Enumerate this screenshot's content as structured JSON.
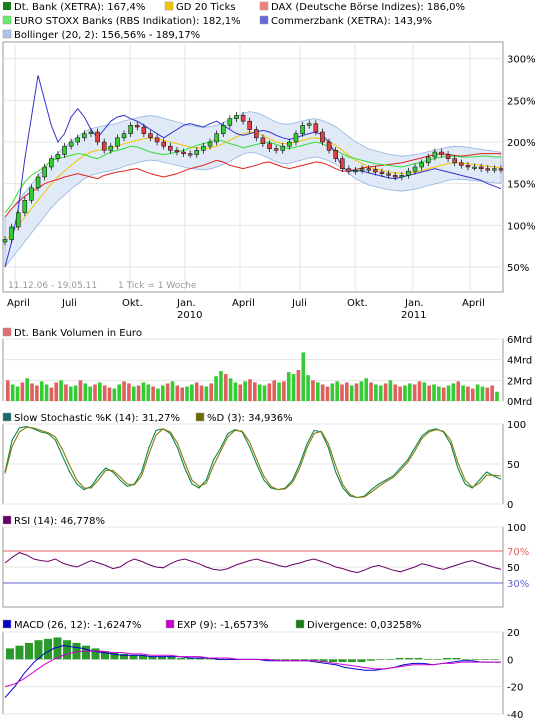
{
  "chart_data": [
    {
      "type": "line",
      "panel": "price",
      "legend": [
        {
          "label": "Dt. Bank (XETRA): 167,4%",
          "color": "#1a7d1a",
          "marker": "candle"
        },
        {
          "label": "GD 20 Ticks",
          "color": "#f5c400"
        },
        {
          "label": "DAX (Deutsche Börse Indizes): 186,0%",
          "color": "#e02020"
        },
        {
          "label": "EURO STOXX Banks (RBS Indikation): 182,1%",
          "color": "#33dd33"
        },
        {
          "label": "Commerzbank (XETRA): 143,9%",
          "color": "#3333cc"
        },
        {
          "label": "Bollinger (20, 2): 156,56% - 189,17%",
          "color": "#8aaee0"
        }
      ],
      "y_ticks": [
        "300%",
        "250%",
        "200%",
        "150%",
        "100%",
        "50%"
      ],
      "y_tick_values": [
        300,
        250,
        200,
        150,
        100,
        50
      ],
      "ylim": [
        20,
        320
      ],
      "date_range_label": "11.12.06 - 19.05.11",
      "tick_label": "1 Tick = 1 Woche",
      "x_month_labels": [
        "April",
        "Juli",
        "Okt.",
        "Jan.",
        "April",
        "Juli",
        "Okt.",
        "Jan.",
        "April"
      ],
      "x_year_labels": [
        "2010",
        "2011"
      ],
      "series": [
        {
          "name": "Dt. Bank (XETRA)",
          "values": [
            83,
            98,
            115,
            130,
            145,
            158,
            170,
            180,
            185,
            195,
            200,
            205,
            210,
            212,
            200,
            190,
            195,
            205,
            210,
            220,
            218,
            210,
            205,
            200,
            195,
            190,
            188,
            186,
            185,
            190,
            195,
            200,
            210,
            220,
            228,
            232,
            225,
            215,
            205,
            198,
            192,
            190,
            195,
            200,
            210,
            220,
            222,
            212,
            200,
            190,
            180,
            168,
            165,
            166,
            168,
            167,
            164,
            162,
            160,
            158,
            160,
            165,
            170,
            175,
            182,
            188,
            185,
            180,
            175,
            172,
            170,
            170,
            168,
            167,
            168,
            167
          ]
        },
        {
          "name": "GD 20 Ticks",
          "values": [
            80,
            90,
            100,
            110,
            120,
            130,
            140,
            150,
            158,
            165,
            172,
            178,
            184,
            188,
            190,
            192,
            193,
            195,
            198,
            200,
            202,
            204,
            205,
            204,
            202,
            200,
            198,
            196,
            194,
            193,
            192,
            193,
            195,
            198,
            202,
            206,
            210,
            212,
            211,
            208,
            204,
            200,
            198,
            198,
            200,
            202,
            204,
            205,
            203,
            200,
            196,
            190,
            184,
            178,
            174,
            170,
            168,
            166,
            164,
            163,
            162,
            163,
            164,
            166,
            168,
            170,
            172,
            174,
            175,
            175,
            174,
            173,
            172,
            171,
            170,
            169
          ]
        },
        {
          "name": "DAX (Deutsche Börse Indizes)",
          "values": [
            110,
            120,
            128,
            135,
            140,
            145,
            150,
            153,
            155,
            158,
            160,
            162,
            160,
            158,
            156,
            160,
            162,
            164,
            165,
            167,
            168,
            165,
            162,
            160,
            158,
            160,
            162,
            165,
            168,
            170,
            172,
            175,
            178,
            176,
            172,
            170,
            168,
            170,
            172,
            175,
            176,
            173,
            170,
            168,
            170,
            172,
            174,
            176,
            175,
            172,
            168,
            165,
            165,
            167,
            169,
            170,
            171,
            172,
            173,
            174,
            175,
            177,
            179,
            181,
            183,
            185,
            186,
            185,
            184,
            183,
            184,
            185,
            186,
            186,
            186,
            186
          ]
        },
        {
          "name": "EURO STOXX Banks (RBS Indikation)",
          "values": [
            115,
            125,
            140,
            152,
            160,
            165,
            170,
            178,
            180,
            182,
            184,
            186,
            185,
            182,
            180,
            184,
            188,
            190,
            192,
            195,
            194,
            191,
            188,
            186,
            185,
            186,
            188,
            190,
            193,
            196,
            198,
            200,
            203,
            201,
            198,
            196,
            193,
            195,
            197,
            199,
            200,
            197,
            194,
            192,
            194,
            196,
            198,
            200,
            198,
            194,
            190,
            186,
            182,
            180,
            178,
            176,
            174,
            173,
            172,
            171,
            170,
            172,
            174,
            176,
            178,
            180,
            182,
            183,
            183,
            182,
            182,
            182,
            183,
            183,
            182,
            182
          ]
        },
        {
          "name": "Commerzbank (XETRA)",
          "values": [
            50,
            80,
            120,
            180,
            230,
            280,
            250,
            220,
            200,
            210,
            230,
            240,
            230,
            215,
            205,
            215,
            225,
            230,
            232,
            228,
            225,
            220,
            215,
            210,
            205,
            210,
            215,
            220,
            222,
            220,
            218,
            222,
            225,
            220,
            215,
            210,
            208,
            210,
            212,
            214,
            212,
            208,
            205,
            203,
            205,
            208,
            210,
            212,
            208,
            200,
            185,
            170,
            165,
            166,
            165,
            163,
            161,
            159,
            157,
            156,
            158,
            160,
            162,
            164,
            166,
            168,
            166,
            164,
            162,
            160,
            158,
            156,
            154,
            150,
            147,
            144
          ]
        }
      ]
    },
    {
      "type": "bar",
      "panel": "volume",
      "legend": [
        {
          "label": "Dt. Bank Volumen in Euro",
          "color": "#e07070"
        }
      ],
      "y_ticks": [
        "6Mrd",
        "4Mrd",
        "2Mrd",
        "0Mrd"
      ],
      "y_tick_values": [
        6,
        4,
        2,
        0
      ],
      "ylim": [
        0,
        6
      ],
      "values": [
        2.0,
        1.6,
        1.4,
        1.8,
        2.2,
        1.7,
        1.5,
        1.9,
        1.6,
        1.3,
        1.8,
        2.0,
        1.6,
        1.4,
        1.5,
        2.0,
        1.7,
        1.4,
        1.6,
        1.8,
        1.5,
        1.3,
        1.2,
        1.6,
        1.9,
        1.7,
        1.4,
        1.5,
        1.8,
        1.6,
        1.4,
        1.2,
        1.5,
        1.7,
        1.9,
        1.5,
        1.3,
        1.4,
        1.6,
        1.8,
        1.5,
        1.4,
        1.7,
        2.4,
        2.9,
        2.6,
        2.2,
        1.8,
        1.6,
        1.9,
        2.1,
        1.8,
        1.6,
        1.5,
        1.7,
        2.0,
        1.8,
        1.9,
        2.8,
        2.6,
        3.0,
        4.7,
        2.5,
        2.0,
        1.8,
        1.6,
        1.4,
        1.7,
        1.9,
        1.6,
        1.8,
        1.5,
        1.7,
        1.9,
        2.2,
        1.8,
        1.6,
        1.5,
        1.7,
        2.0,
        1.6,
        1.4,
        1.5,
        1.7,
        1.6,
        1.9,
        1.8,
        1.5,
        1.6,
        1.4,
        1.3,
        1.5,
        1.7,
        1.9,
        1.5,
        1.4,
        1.2,
        1.6,
        1.4,
        1.3,
        1.5,
        0.9
      ],
      "colors_up_down": [
        "#33cc33",
        "#e06060"
      ]
    },
    {
      "type": "line",
      "panel": "stochastic",
      "legend": [
        {
          "label": "Slow Stochastic %K (14): 31,27%",
          "color": "#1a6a6a"
        },
        {
          "label": "%D (3): 34,936%",
          "color": "#6b6b00"
        }
      ],
      "y_ticks": [
        "100",
        "50",
        "0"
      ],
      "y_tick_values": [
        100,
        50,
        0
      ],
      "ylim": [
        0,
        100
      ],
      "series": [
        {
          "name": "%K",
          "values": [
            40,
            80,
            95,
            97,
            94,
            90,
            88,
            80,
            60,
            40,
            25,
            18,
            22,
            35,
            45,
            40,
            30,
            22,
            25,
            40,
            70,
            92,
            94,
            88,
            70,
            45,
            25,
            20,
            30,
            55,
            70,
            88,
            93,
            90,
            72,
            50,
            30,
            20,
            18,
            20,
            30,
            50,
            75,
            92,
            90,
            70,
            40,
            20,
            10,
            8,
            10,
            18,
            25,
            30,
            35,
            45,
            55,
            70,
            85,
            92,
            94,
            90,
            75,
            45,
            25,
            20,
            30,
            40,
            35,
            31
          ]
        },
        {
          "name": "%D",
          "values": [
            38,
            72,
            90,
            96,
            95,
            92,
            89,
            84,
            68,
            48,
            30,
            20,
            20,
            30,
            42,
            42,
            34,
            25,
            24,
            35,
            62,
            86,
            94,
            90,
            76,
            52,
            30,
            22,
            26,
            48,
            66,
            84,
            92,
            91,
            78,
            56,
            35,
            22,
            18,
            19,
            27,
            45,
            70,
            88,
            91,
            75,
            48,
            24,
            12,
            8,
            9,
            15,
            22,
            28,
            33,
            42,
            52,
            66,
            82,
            90,
            93,
            91,
            80,
            52,
            30,
            21,
            26,
            36,
            36,
            35
          ]
        }
      ]
    },
    {
      "type": "line",
      "panel": "rsi",
      "legend": [
        {
          "label": "RSI (14): 46,778%",
          "color": "#660066"
        }
      ],
      "y_ticks": [
        "100",
        "70%",
        "50",
        "30%"
      ],
      "y_tick_values": [
        100,
        70,
        50,
        30
      ],
      "ylim": [
        0,
        100
      ],
      "reference_lines": [
        {
          "value": 70,
          "color": "#e06060"
        },
        {
          "value": 30,
          "color": "#6060d0"
        }
      ],
      "values": [
        55,
        62,
        68,
        65,
        60,
        58,
        57,
        60,
        55,
        52,
        50,
        54,
        58,
        55,
        52,
        48,
        50,
        56,
        60,
        57,
        53,
        50,
        49,
        54,
        58,
        60,
        57,
        54,
        50,
        47,
        46,
        48,
        52,
        55,
        58,
        60,
        57,
        55,
        52,
        50,
        53,
        55,
        58,
        60,
        57,
        54,
        50,
        48,
        45,
        43,
        46,
        50,
        52,
        49,
        46,
        44,
        47,
        50,
        54,
        52,
        49,
        47,
        50,
        53,
        56,
        58,
        55,
        52,
        49,
        47
      ]
    },
    {
      "type": "bar",
      "panel": "macd",
      "legend": [
        {
          "label": "MACD (26, 12): -1,6247%",
          "color": "#0000cc"
        },
        {
          "label": "EXP (9): -1,6573%",
          "color": "#cc00cc"
        },
        {
          "label": "Divergence: 0,03258%",
          "color": "#1a7d1a"
        }
      ],
      "y_ticks": [
        "20",
        "0",
        "-20",
        "-40"
      ],
      "y_tick_values": [
        20,
        0,
        -20,
        -40
      ],
      "ylim": [
        -40,
        20
      ],
      "macd": [
        -28,
        -20,
        -10,
        -2,
        4,
        8,
        10,
        9,
        8,
        6,
        5,
        4,
        3,
        3,
        3,
        2,
        2,
        2,
        2,
        1,
        1,
        1,
        0,
        0,
        0,
        0,
        0,
        -1,
        -1,
        -1,
        -1,
        -1,
        -2,
        -3,
        -4,
        -6,
        -7,
        -8,
        -8,
        -7,
        -6,
        -4,
        -3,
        -3,
        -4,
        -3,
        -2,
        -1,
        -1,
        -2,
        -2,
        -2
      ],
      "exp": [
        -20,
        -18,
        -14,
        -9,
        -4,
        0,
        3,
        5,
        6,
        6,
        6,
        5,
        5,
        4,
        4,
        3,
        3,
        3,
        2,
        2,
        2,
        1,
        1,
        1,
        0,
        0,
        0,
        0,
        -1,
        -1,
        -1,
        -1,
        -1,
        -2,
        -3,
        -4,
        -5,
        -6,
        -7,
        -7,
        -6,
        -5,
        -4,
        -4,
        -4,
        -3,
        -3,
        -2,
        -2,
        -2,
        -2,
        -2
      ],
      "divergence": [
        8,
        10,
        12,
        14,
        15,
        16,
        14,
        12,
        10,
        8,
        6,
        5,
        4,
        3,
        3,
        2,
        2,
        2,
        1,
        1,
        1,
        1,
        0,
        0,
        0,
        0,
        0,
        0,
        -1,
        -1,
        -1,
        -1,
        -1,
        -2,
        -2,
        -2,
        -2,
        -2,
        -1,
        0,
        0,
        1,
        1,
        1,
        0,
        0,
        1,
        1,
        0,
        0,
        0,
        0
      ]
    }
  ]
}
